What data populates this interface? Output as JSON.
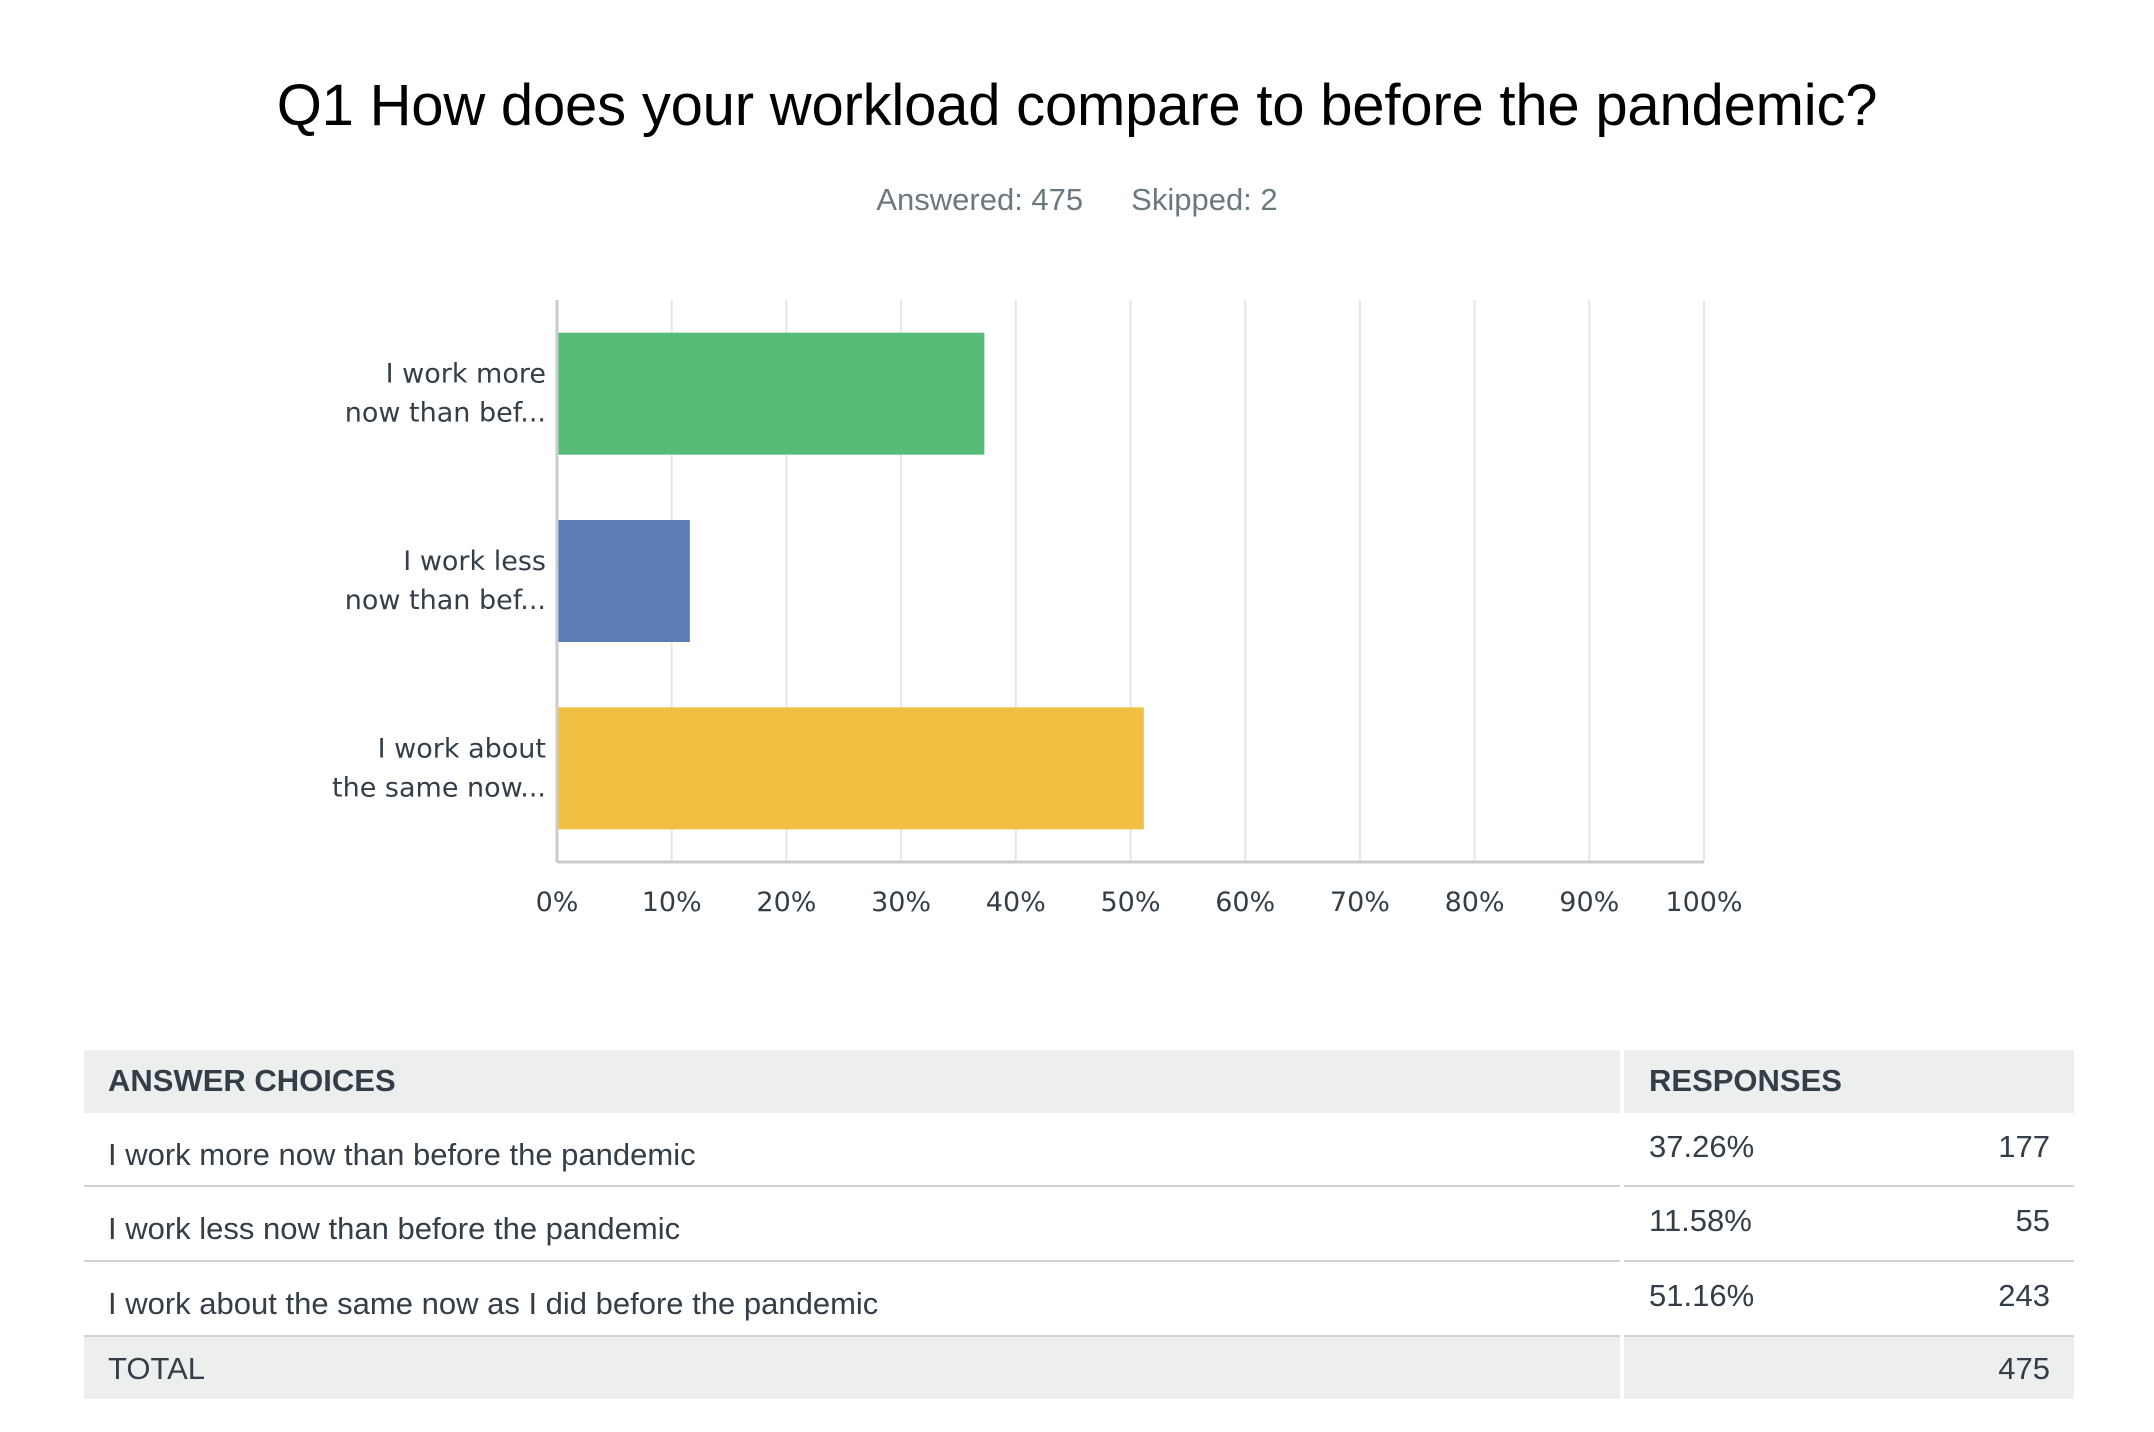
{
  "header": {
    "title": "Q1 How does your workload compare to before the pandemic?",
    "answered": "Answered: 475",
    "skipped": "Skipped: 2"
  },
  "chart_data": {
    "type": "bar",
    "orientation": "horizontal",
    "categories": [
      [
        "I work more",
        "now than bef..."
      ],
      [
        "I work less",
        "now than bef..."
      ],
      [
        "I work about",
        "the same now..."
      ]
    ],
    "values": [
      37.26,
      11.58,
      51.16
    ],
    "colors": [
      "#57bc77",
      "#5b7db4",
      "#f1bf42"
    ],
    "xlim": [
      0,
      100
    ],
    "ticks": [
      "0%",
      "10%",
      "20%",
      "30%",
      "40%",
      "50%",
      "60%",
      "70%",
      "80%",
      "90%",
      "100%"
    ],
    "grid": true
  },
  "table": {
    "headers": [
      "ANSWER CHOICES",
      "RESPONSES"
    ],
    "rows": [
      {
        "choice": "I work more now than before the pandemic",
        "percent": "37.26%",
        "count": "177"
      },
      {
        "choice": "I work less now than before the pandemic",
        "percent": "11.58%",
        "count": "55"
      },
      {
        "choice": "I work about the same now as I did before the pandemic",
        "percent": "51.16%",
        "count": "243"
      }
    ],
    "total_label": "TOTAL",
    "total_count": "475"
  }
}
